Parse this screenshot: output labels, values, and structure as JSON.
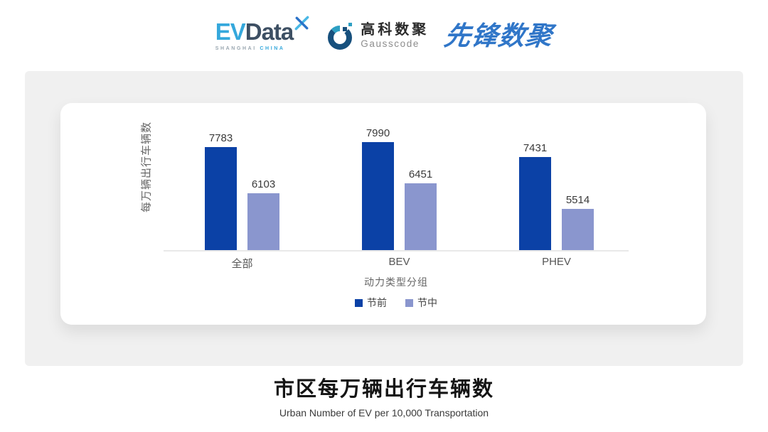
{
  "header": {
    "evdata": {
      "part1": "EV",
      "part2": "Data",
      "sub1": "SHANGHAI",
      "sub2": "CHINA",
      "color_primary": "#35a8dc",
      "color_dark": "#3d4f63"
    },
    "gausscode": {
      "name_cn": "高科数聚",
      "name_en": "Gausscode",
      "color_navy": "#17507d",
      "color_teal": "#2d9fc3"
    },
    "pioneer": {
      "name": "先锋数聚",
      "color": "#3076c8"
    }
  },
  "chart_data": {
    "type": "bar",
    "title": "市区每万辆出行车辆数",
    "categories": [
      "全部",
      "BEV",
      "PHEV"
    ],
    "series": [
      {
        "name": "节前",
        "color": "#0b41a6",
        "values": [
          7783,
          7990,
          7431
        ]
      },
      {
        "name": "节中",
        "color": "#8a96ce",
        "values": [
          6103,
          6451,
          5514
        ]
      }
    ],
    "xlabel": "动力类型分组",
    "ylabel": "每万辆出行车辆数",
    "ylim": [
      4000,
      8500
    ],
    "grid": false,
    "legend_position": "bottom",
    "value_labels": true
  },
  "footer": {
    "title": "市区每万辆出行车辆数",
    "subtitle": "Urban Number of EV per 10,000 Transportation"
  }
}
